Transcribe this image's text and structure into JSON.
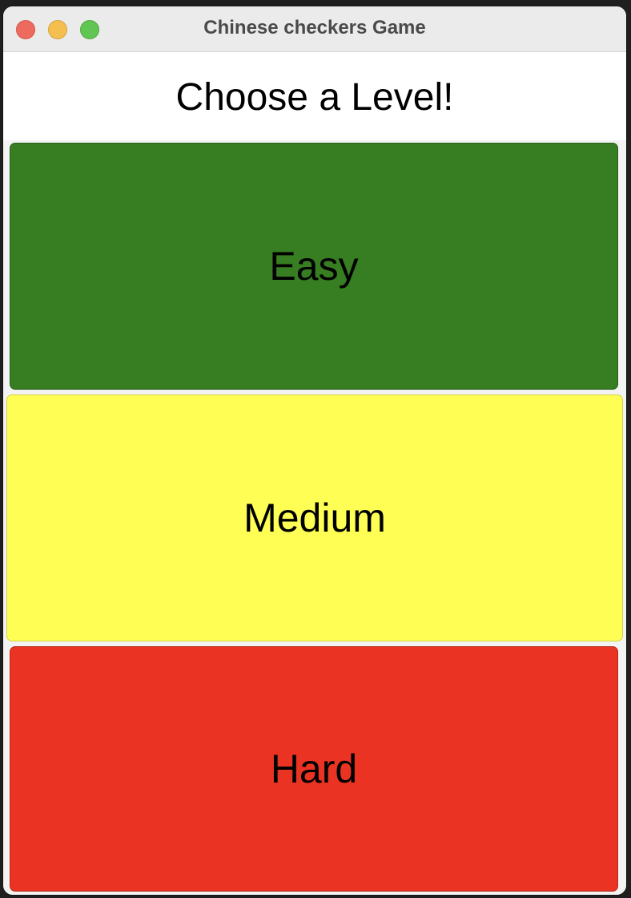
{
  "window": {
    "title": "Chinese checkers Game"
  },
  "main": {
    "heading": "Choose a Level!",
    "levels": [
      {
        "label": "Easy",
        "color": "#377d22"
      },
      {
        "label": "Medium",
        "color": "#fffe54"
      },
      {
        "label": "Hard",
        "color": "#ea3323"
      }
    ]
  },
  "traffic_lights": {
    "close_color": "#ed6a5e",
    "minimize_color": "#f5bf4f",
    "zoom_color": "#61c554"
  }
}
